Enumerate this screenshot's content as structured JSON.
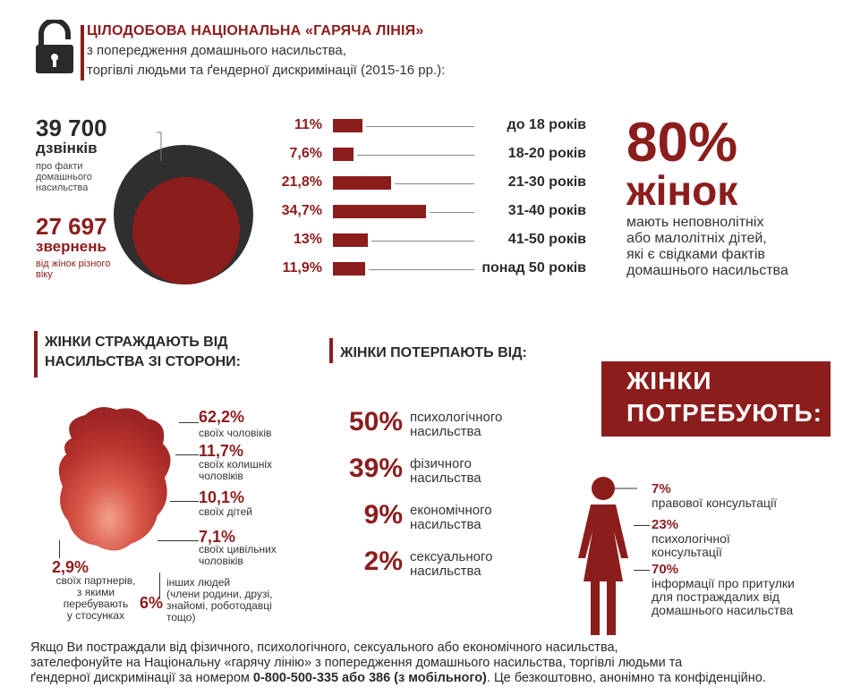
{
  "header": {
    "title": "ЦІЛОДОБОВА НАЦІОНАЛЬНА «ГАРЯЧА ЛІНІЯ»",
    "subtitle_1": "з попередження домашнього насильства,",
    "subtitle_2": "торгівлі людьми та ґендерної дискримінації (2015-16 рр.):",
    "icon": "padlock-icon"
  },
  "calls": {
    "number": "39 700",
    "label": "дзвінків",
    "desc": "про факти домашнього насильства"
  },
  "appeals": {
    "number": "27 697",
    "label": "звернень",
    "desc": "від жінок різного віку"
  },
  "ages": [
    {
      "pct": "11%",
      "value": 11,
      "label": "до 18 років"
    },
    {
      "pct": "7,6%",
      "value": 7.6,
      "label": "18-20 років"
    },
    {
      "pct": "21,8%",
      "value": 21.8,
      "label": "21-30 років"
    },
    {
      "pct": "34,7%",
      "value": 34.7,
      "label": "31-40 років"
    },
    {
      "pct": "13%",
      "value": 13,
      "label": "41-50 років"
    },
    {
      "pct": "11,9%",
      "value": 11.9,
      "label": "понад 50 років"
    }
  ],
  "stat80": {
    "pct": "80%",
    "women": "жінок",
    "desc_1": "мають неповнолітніх",
    "desc_2": "або малолітніх дітей,",
    "desc_3": "які є свідками фактів",
    "desc_4": "домашнього насильства"
  },
  "abusers": {
    "title_1": "ЖІНКИ СТРАЖДАЮТЬ ВІД",
    "title_2": "НАСИЛЬСТВА ЗІ СТОРОНИ:",
    "items": [
      {
        "pct": "62,2%",
        "label_1": "своїх чоловіків"
      },
      {
        "pct": "11,7%",
        "label_1": "своїх колишніх",
        "label_2": "чоловіків"
      },
      {
        "pct": "10,1%",
        "label_1": "своїх дітей"
      },
      {
        "pct": "7,1%",
        "label_1": "своїх цивільних",
        "label_2": "чоловіків"
      },
      {
        "pct": "2,9%",
        "label_1": "своїх партнерів,",
        "label_2": "з якими",
        "label_3": "перебувають",
        "label_4": "у стосунках"
      },
      {
        "pct": "6%",
        "label_1": "інших людей",
        "label_2": "(члени родини, друзі,",
        "label_3": "знайомі, роботодавці",
        "label_4": "тощо)"
      }
    ]
  },
  "violence": {
    "title": "ЖІНКИ ПОТЕРПАЮТЬ ВІД:",
    "items": [
      {
        "pct": "50%",
        "label_1": "психологічного",
        "label_2": "насильства"
      },
      {
        "pct": "39%",
        "label_1": "фізичного",
        "label_2": "насильства"
      },
      {
        "pct": "9%",
        "label_1": "економічного",
        "label_2": "насильства"
      },
      {
        "pct": "2%",
        "label_1": "сексуального",
        "label_2": "насильства"
      }
    ]
  },
  "needs": {
    "title_1": "ЖІНКИ",
    "title_2": "ПОТРЕБУЮТЬ:",
    "icon": "woman-figure-icon",
    "items": [
      {
        "pct": "7%",
        "label_1": "правової консультації"
      },
      {
        "pct": "23%",
        "label_1": "психологічної",
        "label_2": "консультації"
      },
      {
        "pct": "70%",
        "label_1": "інформації про притулки",
        "label_2": "для постраждалих від",
        "label_3": "домашнього насильства"
      }
    ]
  },
  "footer": {
    "line_1": "Якщо Ви постраждали від фізичного, психологічного, сексуального або економічного насильства,",
    "line_2": "зателефонуйте на Національну «гарячу лінію» з попередження домашнього насильства, торгівлі людьми та",
    "line_3a": "ґендерної дискримінації за номером ",
    "line_3b": "0-800-500-335 або 386 (з мобільного)",
    "line_3c": ". Це безкоштовно, анонімно та конфіденційно."
  },
  "colors": {
    "accent": "#8c1d1d",
    "text": "#2a2a2a",
    "dark_circle": "#2f2f2f"
  }
}
